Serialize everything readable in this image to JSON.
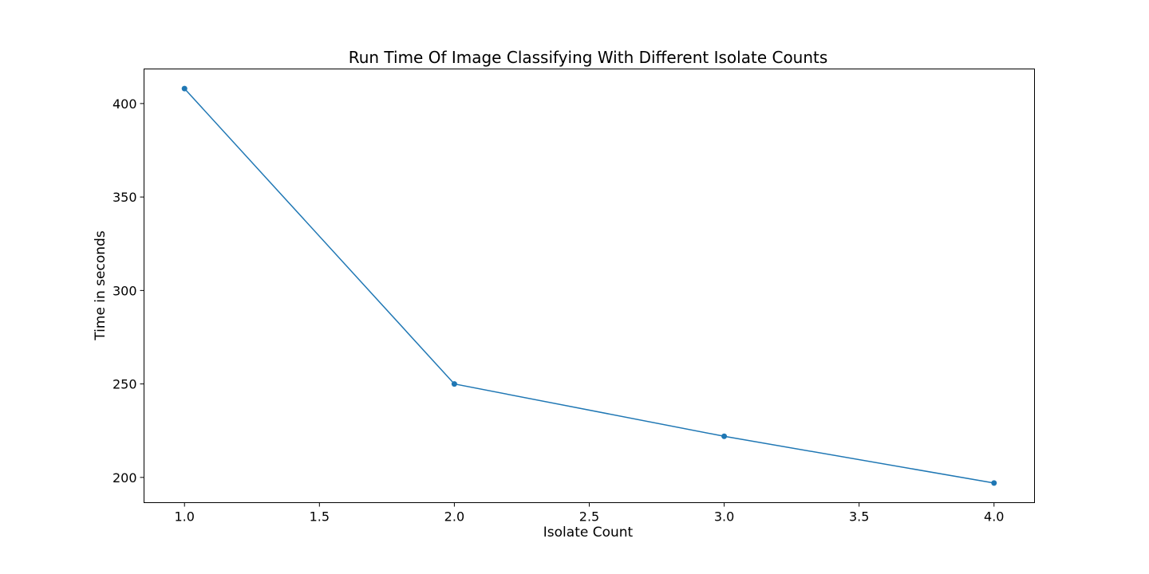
{
  "chart_data": {
    "type": "line",
    "title": "Run Time Of Image Classifying With Different Isolate Counts",
    "xlabel": "Isolate Count",
    "ylabel": "Time in seconds",
    "xlim": [
      0.85,
      4.15
    ],
    "ylim": [
      186.5,
      418.5
    ],
    "x_ticks": [
      1.0,
      1.5,
      2.0,
      2.5,
      3.0,
      3.5,
      4.0
    ],
    "x_tick_labels": [
      "1.0",
      "1.5",
      "2.0",
      "2.5",
      "3.0",
      "3.5",
      "4.0"
    ],
    "y_ticks": [
      200,
      250,
      300,
      350,
      400
    ],
    "y_tick_labels": [
      "200",
      "250",
      "300",
      "350",
      "400"
    ],
    "grid": false,
    "series": [
      {
        "color": "#1f77b4",
        "marker": "circle",
        "x": [
          1.0,
          2.0,
          3.0,
          4.0
        ],
        "y": [
          408,
          250,
          222,
          197
        ]
      }
    ]
  }
}
